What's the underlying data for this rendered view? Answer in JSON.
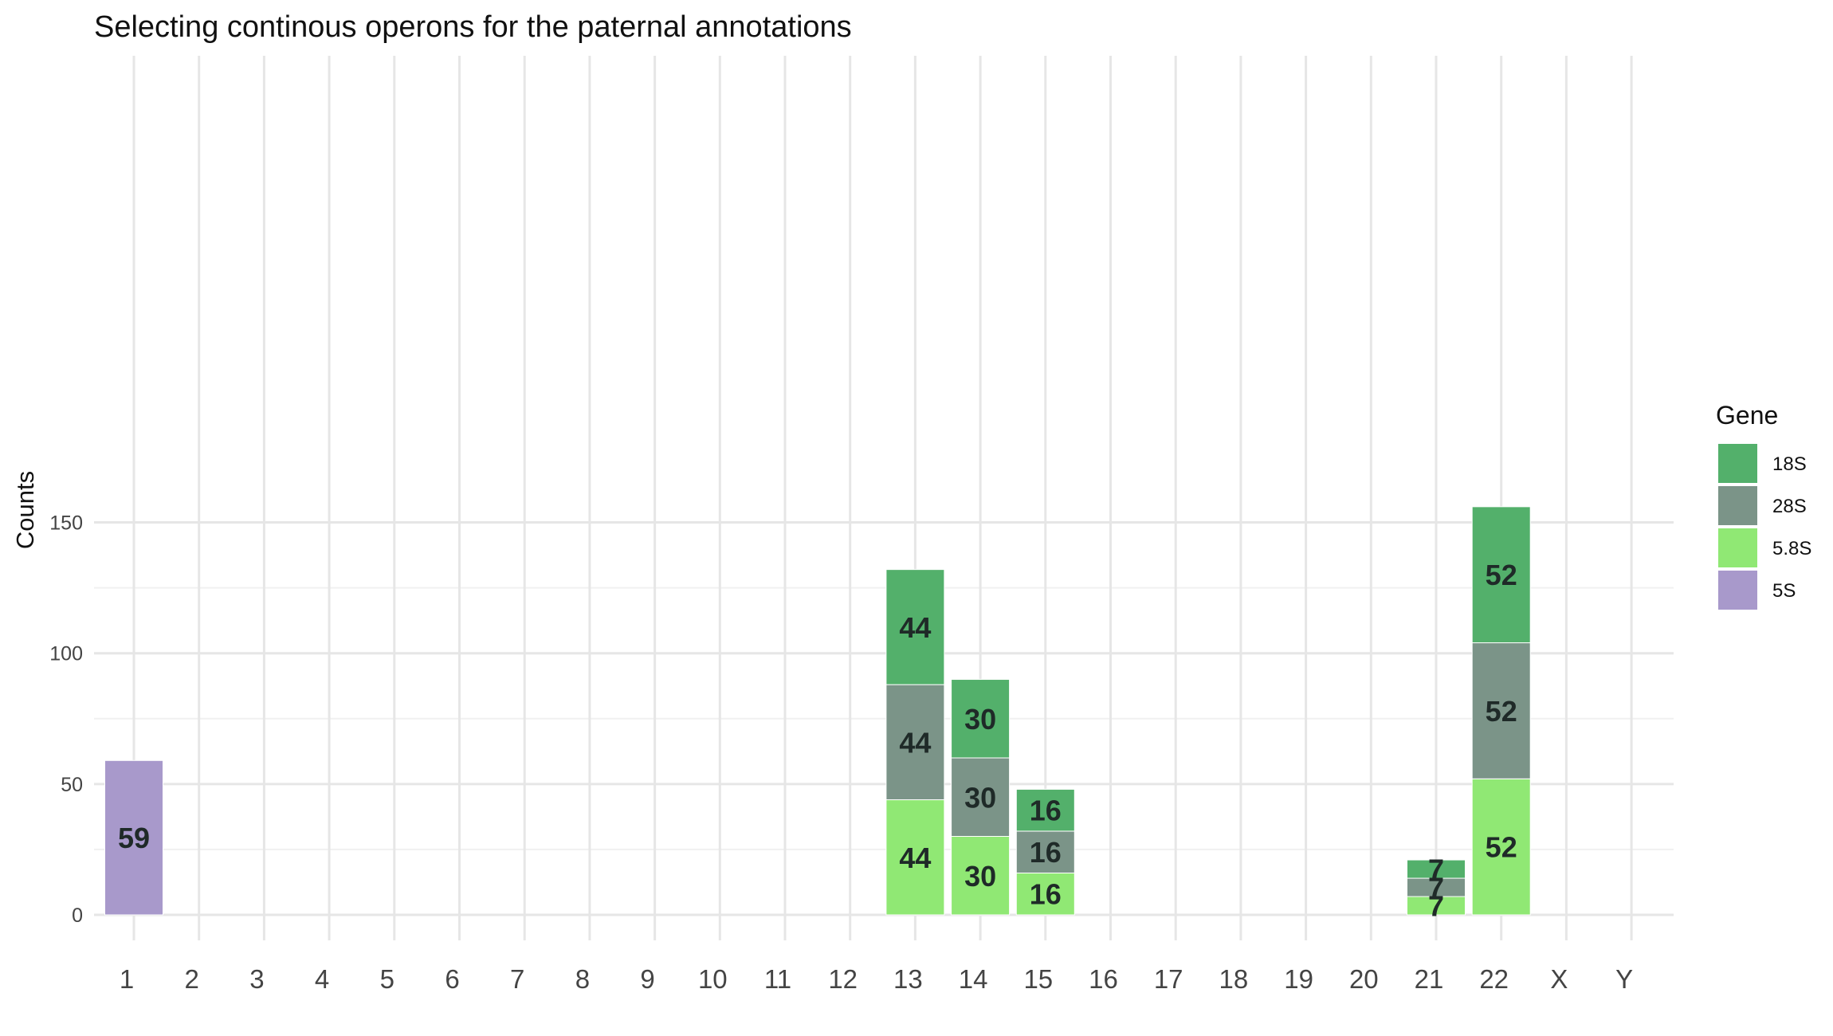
{
  "chart_data": {
    "type": "bar",
    "stacked": true,
    "title": "Selecting continous operons for the paternal annotations",
    "xlabel": "",
    "ylabel": "Counts",
    "categories": [
      "1",
      "2",
      "3",
      "4",
      "5",
      "6",
      "7",
      "8",
      "9",
      "10",
      "11",
      "12",
      "13",
      "14",
      "15",
      "16",
      "17",
      "18",
      "19",
      "20",
      "21",
      "22",
      "X",
      "Y"
    ],
    "ylim": [
      0,
      160
    ],
    "yticks": [
      0,
      50,
      100,
      150
    ],
    "grid": true,
    "legend_position": "right",
    "legend_title": "Gene",
    "series": [
      {
        "name": "5.8S",
        "color": "#90e874",
        "values": [
          0,
          0,
          0,
          0,
          0,
          0,
          0,
          0,
          0,
          0,
          0,
          0,
          44,
          30,
          16,
          0,
          0,
          0,
          0,
          0,
          7,
          52,
          0,
          0
        ]
      },
      {
        "name": "28S",
        "color": "#7b9488",
        "values": [
          0,
          0,
          0,
          0,
          0,
          0,
          0,
          0,
          0,
          0,
          0,
          0,
          44,
          30,
          16,
          0,
          0,
          0,
          0,
          0,
          7,
          52,
          0,
          0
        ]
      },
      {
        "name": "18S",
        "color": "#53b06b",
        "values": [
          0,
          0,
          0,
          0,
          0,
          0,
          0,
          0,
          0,
          0,
          0,
          0,
          44,
          30,
          16,
          0,
          0,
          0,
          0,
          0,
          7,
          52,
          0,
          0
        ]
      },
      {
        "name": "5S",
        "color": "#a899cb",
        "values": [
          59,
          0,
          0,
          0,
          0,
          0,
          0,
          0,
          0,
          0,
          0,
          0,
          0,
          0,
          0,
          0,
          0,
          0,
          0,
          0,
          0,
          0,
          0,
          0
        ]
      }
    ],
    "legend_order": [
      "18S",
      "28S",
      "5.8S",
      "5S"
    ]
  }
}
